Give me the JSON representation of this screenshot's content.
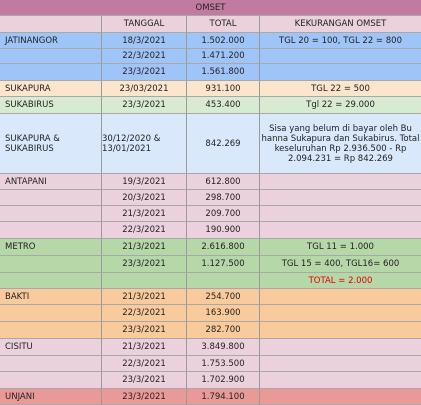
{
  "colors": {
    "header_title": "#c27ba0",
    "header_cols": "#ead1dc",
    "blue": "#9fc5f8",
    "peach": "#fce5cd",
    "lightgreen": "#d9ead3",
    "lightblue": "#dae8fc",
    "pink": "#ead1dc",
    "green": "#b6d7a8",
    "orange": "#f9cb9c",
    "red": "#ea9999",
    "accent_text": "#e00000"
  },
  "title": "OMSET",
  "headers": [
    "",
    "TANGGAL",
    "TOTAL",
    "KEKURANGAN OMSET"
  ],
  "rows": [
    {
      "name": "JATINANGOR",
      "date": "18/3/2021",
      "total": "1.502.000",
      "note": "TGL 20 = 100, TGL 22 = 800",
      "color": "blue"
    },
    {
      "name": "",
      "date": "22/3/2021",
      "total": "1.471.200",
      "note": "",
      "color": "blue"
    },
    {
      "name": "",
      "date": "23/3/2021",
      "total": "1.561.800",
      "note": "",
      "color": "blue"
    },
    {
      "name": "SUKAPURA",
      "date": "23/03/2021",
      "total": "931.100",
      "note": "TGL 22 = 500",
      "color": "peach"
    },
    {
      "name": "SUKABIRUS",
      "date": "23/3/2021",
      "total": "453.400",
      "note": "Tgl 22 = 29.000",
      "color": "lightgreen"
    },
    {
      "name": "SUKAPURA & SUKABIRUS",
      "date": "30/12/2020 & 13/01/2021",
      "total": "842.269",
      "note": "Sisa yang belum di bayar oleh Bu hanna Sukapura dan Sukabirus. Total keseluruhan Rp 2.936.500 - Rp 2.094.231 = Rp 842.269",
      "color": "lightblue"
    },
    {
      "name": "ANTAPANI",
      "date": "19/3/2021",
      "total": "612.800",
      "note": "",
      "color": "pink"
    },
    {
      "name": "",
      "date": "20/3/2021",
      "total": "298.700",
      "note": "",
      "color": "pink"
    },
    {
      "name": "",
      "date": "21/3/2021",
      "total": "209.700",
      "note": "",
      "color": "pink"
    },
    {
      "name": "",
      "date": "22/3/2021",
      "total": "190.900",
      "note": "",
      "color": "pink"
    },
    {
      "name": "METRO",
      "date": "21/3/2021",
      "total": "2.616.800",
      "note": "TGL 11 = 1.000",
      "color": "green"
    },
    {
      "name": "",
      "date": "23/3/2021",
      "total": "1.127.500",
      "note": "TGL 15 = 400, TGL16= 600",
      "color": "green"
    },
    {
      "name": "",
      "date": "",
      "total": "",
      "note": "TOTAL = 2.000",
      "color": "green",
      "note_red": true
    },
    {
      "name": "BAKTI",
      "date": "21/3/2021",
      "total": "254.700",
      "note": "",
      "color": "orange"
    },
    {
      "name": "",
      "date": "22/3/2021",
      "total": "163.900",
      "note": "",
      "color": "orange"
    },
    {
      "name": "",
      "date": "23/3/2021",
      "total": "282.700",
      "note": "",
      "color": "orange"
    },
    {
      "name": "CISITU",
      "date": "21/3/2021",
      "total": "3.849.800",
      "note": "",
      "color": "pink"
    },
    {
      "name": "",
      "date": "22/3/2021",
      "total": "1.753.500",
      "note": "",
      "color": "pink"
    },
    {
      "name": "",
      "date": "23/3/2021",
      "total": "1.702.900",
      "note": "",
      "color": "pink"
    },
    {
      "name": "UNJANI",
      "date": "23/3/2021",
      "total": "1.794.100",
      "note": "",
      "color": "red"
    }
  ]
}
